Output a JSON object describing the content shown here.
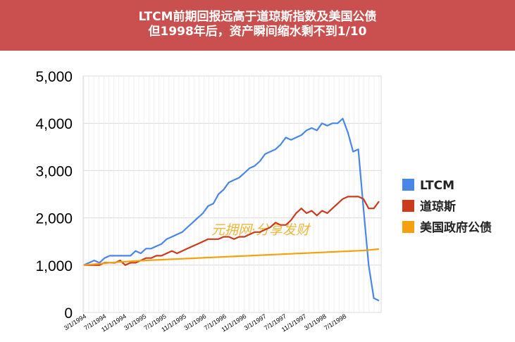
{
  "header": {
    "line1": "LTCM前期回报远高于道琼斯指数及美国公债",
    "line2": "但1998年后，资产瞬间缩水剩不到1/10",
    "background": "#c9504e"
  },
  "watermark": "元拥网·分享发财",
  "chart_data": {
    "type": "line",
    "title": "LTCM前期回报远高于道琼斯指数及美国公债 但1998年后，资产瞬间缩水剩不到1/10",
    "xlabel": "",
    "ylabel": "",
    "ylim": [
      0,
      5000
    ],
    "yticks": [
      0,
      1000,
      2000,
      3000,
      4000,
      5000
    ],
    "ytick_labels": [
      "0",
      "1,000",
      "2,000",
      "3,000",
      "4,000",
      "5,000"
    ],
    "x_count": 60,
    "x_tick_indices": [
      0,
      4,
      8,
      12,
      16,
      20,
      24,
      28,
      32,
      36,
      40,
      44,
      48,
      52
    ],
    "x_tick_labels": [
      "3/1/1994",
      "7/1/1994",
      "11/1/1994",
      "3/1/1995",
      "7/1/1995",
      "11/1/1995",
      "3/1/1996",
      "7/1/1996",
      "11/1/1996",
      "3/1/1997",
      "7/1/1997",
      "11/1/1997",
      "3/1/1998",
      "7/1/1998"
    ],
    "grid": true,
    "legend_position": "right",
    "series": [
      {
        "name": "LTCM",
        "color": "#4a86e8",
        "values": [
          1000,
          1050,
          1100,
          1050,
          1150,
          1200,
          1200,
          1200,
          1200,
          1200,
          1300,
          1250,
          1350,
          1350,
          1400,
          1450,
          1550,
          1600,
          1650,
          1700,
          1800,
          1900,
          2000,
          2100,
          2250,
          2300,
          2500,
          2600,
          2750,
          2800,
          2850,
          2950,
          3050,
          3100,
          3200,
          3350,
          3400,
          3450,
          3550,
          3700,
          3650,
          3700,
          3750,
          3850,
          3900,
          3850,
          4000,
          3950,
          4000,
          4000,
          4100,
          3800,
          3400,
          3450,
          2200,
          1000,
          300,
          250
        ]
      },
      {
        "name": "道琼斯",
        "color": "#cc3a1c",
        "values": [
          1000,
          1000,
          1000,
          1000,
          1050,
          1050,
          1050,
          1100,
          1000,
          1050,
          1050,
          1100,
          1150,
          1150,
          1200,
          1200,
          1250,
          1300,
          1250,
          1300,
          1350,
          1400,
          1450,
          1500,
          1550,
          1550,
          1550,
          1600,
          1600,
          1550,
          1600,
          1600,
          1650,
          1700,
          1700,
          1750,
          1800,
          1900,
          1850,
          1850,
          1950,
          2100,
          2200,
          2100,
          2150,
          2050,
          2150,
          2100,
          2200,
          2300,
          2400,
          2450,
          2450,
          2450,
          2400,
          2200,
          2200,
          2350
        ]
      },
      {
        "name": "美国政府公债",
        "color": "#f5a10e",
        "values": [
          1000,
          1010,
          1020,
          1030,
          1040,
          1050,
          1060,
          1070,
          1075,
          1080,
          1090,
          1095,
          1100,
          1105,
          1110,
          1115,
          1120,
          1125,
          1130,
          1135,
          1140,
          1145,
          1150,
          1155,
          1160,
          1165,
          1170,
          1175,
          1180,
          1185,
          1190,
          1195,
          1200,
          1205,
          1210,
          1215,
          1220,
          1225,
          1230,
          1235,
          1240,
          1245,
          1250,
          1255,
          1260,
          1265,
          1270,
          1275,
          1280,
          1285,
          1290,
          1295,
          1300,
          1305,
          1310,
          1320,
          1330,
          1340
        ]
      }
    ]
  }
}
